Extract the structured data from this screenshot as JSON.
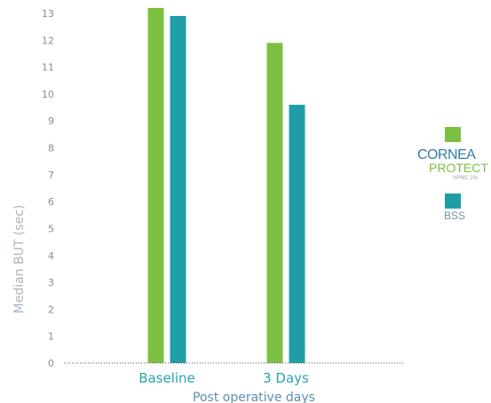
{
  "chart_data": {
    "type": "bar",
    "categories": [
      "Baseline",
      "3 Days"
    ],
    "series": [
      {
        "name": "CORNEA PROTECT HPMC 2%",
        "values": [
          13.2,
          11.9
        ],
        "color": "#7bc043"
      },
      {
        "name": "BSS",
        "values": [
          12.9,
          9.6
        ],
        "color": "#1f9ea8"
      }
    ],
    "xlabel": "Post operative days",
    "ylabel": "Median BUT (sec)",
    "ylim": [
      0,
      13
    ],
    "yticks": [
      0,
      1,
      2,
      3,
      4,
      5,
      6,
      7,
      8,
      9,
      10,
      11,
      12,
      13
    ],
    "grid": false,
    "legend_position": "right"
  },
  "chart_values_note_free": true,
  "legend": {
    "logo_line1": "CORNEA",
    "logo_line2": "PROTECT",
    "logo_line3": "HPMC 2%",
    "bss_label": "BSS"
  }
}
